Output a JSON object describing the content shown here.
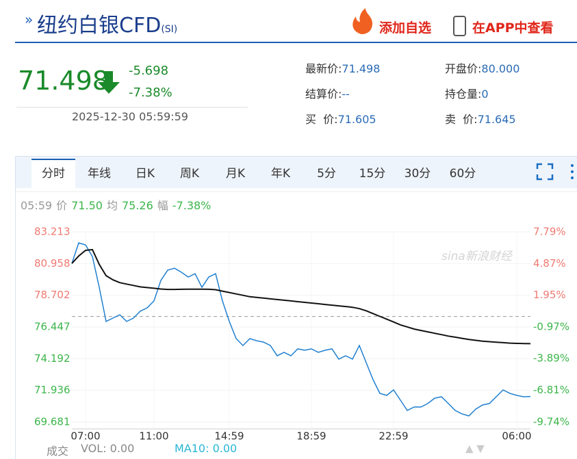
{
  "header": {
    "title": "纽约白银CFD",
    "code": "(SI)",
    "add_button": "添加自选",
    "app_button": "在APP中查看"
  },
  "quote": {
    "price": "71.498",
    "change": "-5.698",
    "change_pct": "-7.38%",
    "time": "2025-12-30 05:59:59",
    "fields": [
      [
        "最新价:",
        "71.498"
      ],
      [
        "开盘价:",
        "80.000"
      ],
      [
        "结算价:",
        "--"
      ],
      [
        "持仓量:",
        "0"
      ],
      [
        "买  价:",
        "71.605"
      ],
      [
        "卖  价:",
        "71.645"
      ]
    ]
  },
  "tabs": [
    "分时",
    "年线",
    "日K",
    "周K",
    "月K",
    "年K",
    "5分",
    "15分",
    "30分",
    "60分"
  ],
  "info_line": [
    "05:59",
    "价",
    "71.50",
    "均",
    "75.26",
    "幅",
    "-7.38%"
  ],
  "footer": [
    "成交",
    "VOL: 0.00",
    "MA10: 0.00"
  ],
  "chart_data": {
    "type": "line",
    "watermark": "sina新浪财经",
    "categories": [
      null,
      null,
      "07:00",
      null,
      null,
      null,
      null,
      null,
      null,
      null,
      null,
      null,
      "11:00",
      null,
      null,
      null,
      null,
      null,
      null,
      null,
      null,
      null,
      null,
      "14:59",
      null,
      null,
      null,
      null,
      null,
      null,
      null,
      null,
      null,
      null,
      null,
      "18:59",
      null,
      null,
      null,
      null,
      null,
      null,
      null,
      null,
      null,
      null,
      null,
      "22:59",
      null,
      null,
      null,
      null,
      null,
      null,
      null,
      null,
      null,
      null,
      null,
      null,
      null,
      null,
      null,
      null,
      null,
      "06:00",
      null,
      null
    ],
    "series": [
      {
        "color": "#1f7fd0",
        "values": [
          80.97,
          82.43,
          82.29,
          81.46,
          79.27,
          76.84,
          77.08,
          77.32,
          76.84,
          77.08,
          77.57,
          77.81,
          78.3,
          79.76,
          80.49,
          80.63,
          80.34,
          80.0,
          80.24,
          79.27,
          80.0,
          80.24,
          78.3,
          76.84,
          75.62,
          75.13,
          75.62,
          75.47,
          75.37,
          75.13,
          74.4,
          74.64,
          74.4,
          74.89,
          74.79,
          74.89,
          74.64,
          74.79,
          74.89,
          74.16,
          74.4,
          74.16,
          75.13,
          73.91,
          72.7,
          71.72,
          71.58,
          71.97,
          71.24,
          70.51,
          70.75,
          70.75,
          71.0,
          71.38,
          71.48,
          71.0,
          70.51,
          70.26,
          70.12,
          70.6,
          70.9,
          71.0,
          71.48,
          71.97,
          71.72,
          71.58,
          71.48,
          71.5
        ]
      },
      {
        "color": "#111111",
        "values": [
          80.97,
          81.5,
          81.9,
          81.95,
          80.9,
          80.1,
          79.8,
          79.6,
          79.5,
          79.4,
          79.3,
          79.25,
          79.2,
          79.15,
          79.12,
          79.12,
          79.13,
          79.14,
          79.14,
          79.14,
          79.13,
          79.1,
          79.0,
          78.9,
          78.8,
          78.7,
          78.6,
          78.55,
          78.5,
          78.45,
          78.4,
          78.35,
          78.3,
          78.25,
          78.2,
          78.15,
          78.1,
          78.05,
          78.0,
          77.95,
          77.9,
          77.85,
          77.75,
          77.6,
          77.4,
          77.2,
          77.0,
          76.8,
          76.6,
          76.45,
          76.3,
          76.2,
          76.1,
          76.0,
          75.9,
          75.8,
          75.72,
          75.64,
          75.56,
          75.5,
          75.44,
          75.4,
          75.36,
          75.33,
          75.3,
          75.28,
          75.27,
          75.26
        ]
      }
    ],
    "reference_line": 77.196,
    "ylim": [
      69.681,
      83.213
    ],
    "yticks": [
      83.213,
      80.958,
      78.702,
      76.447,
      74.192,
      71.936,
      69.681
    ],
    "y2lim": [
      -9.74,
      7.79
    ],
    "y2ticks": [
      {
        "value": 7.79,
        "label": "7.79%"
      },
      {
        "value": 4.87,
        "label": "4.87%"
      },
      {
        "value": 1.95,
        "label": "1.95%"
      },
      {
        "value": -0.97,
        "label": "-0.97%"
      },
      {
        "value": -3.89,
        "label": "-3.89%"
      },
      {
        "value": -6.81,
        "label": "-6.81%"
      },
      {
        "value": -9.74,
        "label": "-9.74%"
      }
    ],
    "grid": true,
    "up_color": "#ef7a72",
    "down_color": "#3bb54a"
  }
}
